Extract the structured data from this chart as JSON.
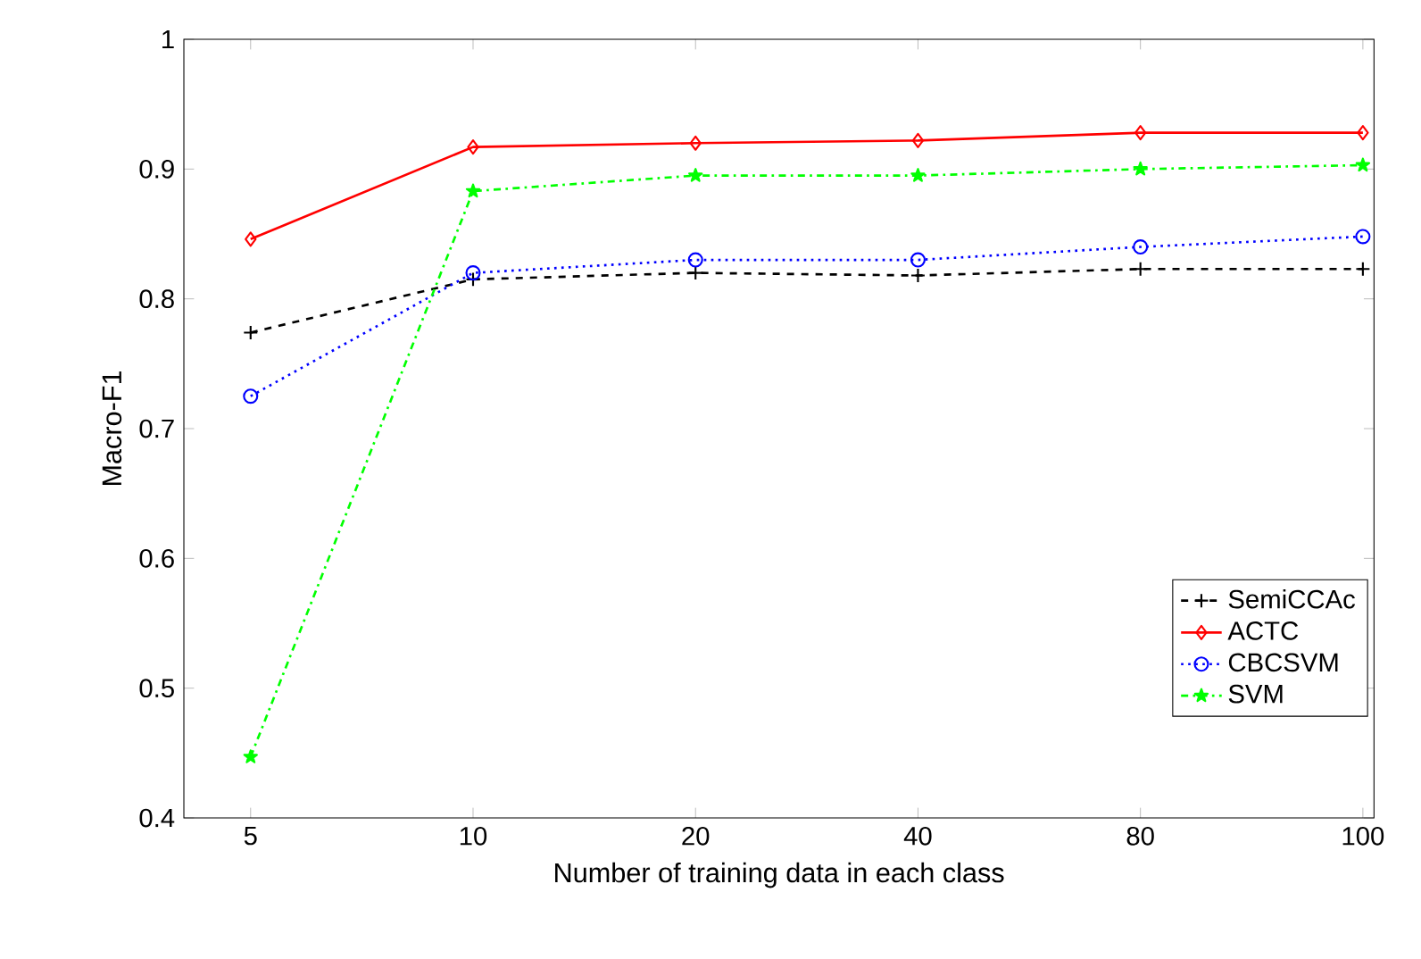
{
  "chart_data": {
    "type": "line",
    "xlabel": "Number of training data in each class",
    "ylabel": "Macro-F1",
    "categories": [
      "5",
      "10",
      "20",
      "40",
      "80",
      "100"
    ],
    "ylim": [
      0.4,
      1
    ],
    "yticks": [
      0.4,
      0.5,
      0.6,
      0.7,
      0.8,
      0.9,
      1
    ],
    "grid": false,
    "legend": "right",
    "series": [
      {
        "name": "SemiCCAc",
        "color": "#000000",
        "marker": "cross",
        "line_style": "dashed",
        "values": [
          0.774,
          0.815,
          0.82,
          0.818,
          0.823,
          0.823
        ]
      },
      {
        "name": "ACTC",
        "color": "#ff0000",
        "marker": "diamond",
        "line_style": "solid",
        "values": [
          0.846,
          0.917,
          0.92,
          0.922,
          0.928,
          0.928
        ]
      },
      {
        "name": "CBCSVM",
        "color": "#0000ff",
        "marker": "circle",
        "line_style": "dotted",
        "values": [
          0.725,
          0.82,
          0.83,
          0.83,
          0.84,
          0.848
        ]
      },
      {
        "name": "SVM",
        "color": "#00ff00",
        "marker": "star",
        "line_style": "dashdot",
        "values": [
          0.447,
          0.883,
          0.895,
          0.895,
          0.9,
          0.903
        ]
      }
    ]
  }
}
